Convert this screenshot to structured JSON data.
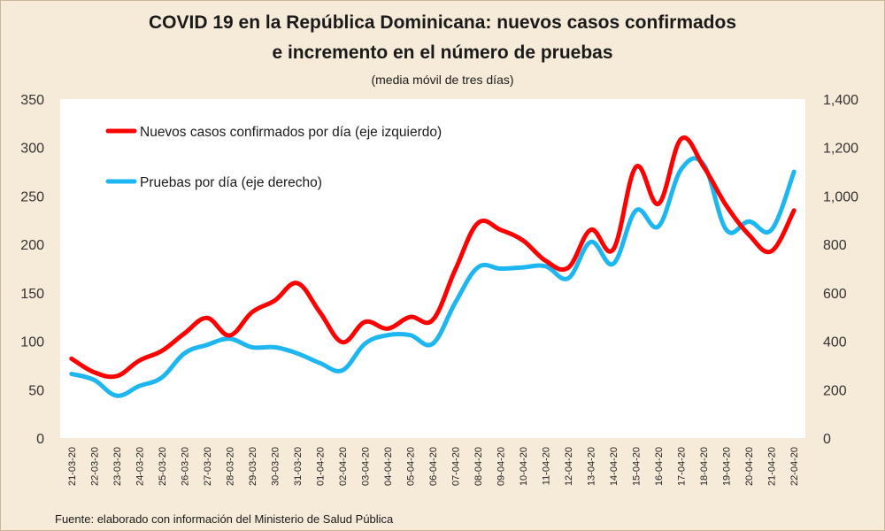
{
  "title_line1": "COVID 19 en la República Dominicana: nuevos casos confirmados",
  "title_line2": "e incremento en el número de pruebas",
  "subtitle": "(media móvil de tres días)",
  "source": "Fuente: elaborado con información del Ministerio de Salud Pública",
  "colors": {
    "background": "#f6ead8",
    "plot_area": "#ffffff",
    "cases": "#ff0000",
    "tests": "#1eb6f0"
  },
  "chart_data": {
    "type": "line",
    "categories": [
      "21-03-20",
      "22-03-20",
      "23-03-20",
      "24-03-20",
      "25-03-20",
      "26-03-20",
      "27-03-20",
      "28-03-20",
      "29-03-20",
      "30-03-20",
      "31-03-20",
      "01-04-20",
      "02-04-20",
      "03-04-20",
      "04-04-20",
      "05-04-20",
      "06-04-20",
      "07-04-20",
      "08-04-20",
      "09-04-20",
      "10-04-20",
      "11-04-20",
      "12-04-20",
      "13-04-20",
      "14-04-20",
      "15-04-20",
      "16-04-20",
      "17-04-20",
      "18-04-20",
      "19-04-20",
      "20-04-20",
      "21-04-20",
      "22-04-20"
    ],
    "series": [
      {
        "name": "Nuevos casos confirmados por día (eje izquierdo)",
        "axis": "left",
        "values": [
          82,
          68,
          64,
          80,
          90,
          108,
          124,
          106,
          130,
          142,
          160,
          130,
          99,
          120,
          113,
          125,
          122,
          174,
          222,
          215,
          204,
          183,
          176,
          215,
          195,
          280,
          242,
          309,
          280,
          240,
          210,
          193,
          235
        ]
      },
      {
        "name": "Pruebas por día (eje derecho)",
        "axis": "right",
        "values": [
          265,
          240,
          175,
          215,
          250,
          350,
          385,
          410,
          375,
          375,
          350,
          310,
          280,
          390,
          425,
          425,
          390,
          560,
          705,
          700,
          705,
          710,
          660,
          810,
          720,
          940,
          875,
          1110,
          1130,
          860,
          895,
          860,
          1100
        ]
      }
    ],
    "y_left": {
      "min": 0,
      "max": 350,
      "ticks": [
        "0",
        "50",
        "100",
        "150",
        "200",
        "250",
        "300",
        "350"
      ]
    },
    "y_right": {
      "min": 0,
      "max": 1400,
      "ticks": [
        "0",
        "200",
        "400",
        "600",
        "800",
        "1,000",
        "1,200",
        "1,400"
      ]
    },
    "grid": false,
    "legend_position": "top-left"
  }
}
